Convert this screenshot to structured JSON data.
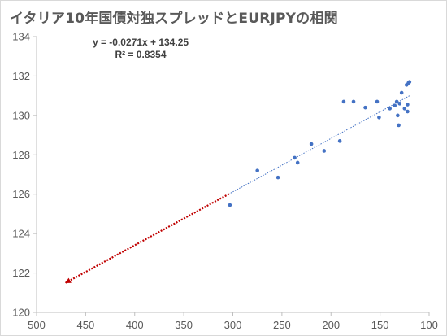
{
  "chart_data": {
    "type": "scatter",
    "title": "イタリア10年国債対独スプレッドとEURJPYの相関",
    "xlabel": "",
    "ylabel": "",
    "x_reversed": true,
    "xlim": [
      100,
      500
    ],
    "ylim": [
      120,
      134
    ],
    "x_ticks": [
      500,
      450,
      400,
      350,
      300,
      250,
      200,
      150,
      100
    ],
    "y_ticks": [
      120,
      122,
      124,
      126,
      128,
      130,
      132,
      134
    ],
    "grid": false,
    "point_color": "#4472C4",
    "points": [
      {
        "x": 303,
        "y": 125.45
      },
      {
        "x": 275,
        "y": 127.2
      },
      {
        "x": 254,
        "y": 126.85
      },
      {
        "x": 237,
        "y": 127.85
      },
      {
        "x": 234,
        "y": 127.6
      },
      {
        "x": 220,
        "y": 128.55
      },
      {
        "x": 207,
        "y": 128.2
      },
      {
        "x": 191,
        "y": 128.7
      },
      {
        "x": 187,
        "y": 130.7
      },
      {
        "x": 177,
        "y": 130.7
      },
      {
        "x": 165,
        "y": 130.4
      },
      {
        "x": 153,
        "y": 130.7
      },
      {
        "x": 151,
        "y": 129.9
      },
      {
        "x": 140,
        "y": 130.35
      },
      {
        "x": 135,
        "y": 130.5
      },
      {
        "x": 133,
        "y": 130.7
      },
      {
        "x": 132,
        "y": 130.0
      },
      {
        "x": 131,
        "y": 129.5
      },
      {
        "x": 130,
        "y": 130.6
      },
      {
        "x": 128,
        "y": 131.15
      },
      {
        "x": 125,
        "y": 130.35
      },
      {
        "x": 123,
        "y": 131.55
      },
      {
        "x": 122,
        "y": 130.2
      },
      {
        "x": 122,
        "y": 130.55
      },
      {
        "x": 121,
        "y": 131.65
      },
      {
        "x": 120,
        "y": 131.7
      }
    ],
    "trendline": {
      "equation": "y = -0.0271x + 134.25",
      "r_squared": "R² = 0.8354",
      "slope": -0.0271,
      "intercept": 134.25,
      "fit_range": [
        120,
        304
      ],
      "fit_color": "#4472C4",
      "forecast_range": [
        304,
        471
      ],
      "forecast_color": "#C00000"
    }
  }
}
